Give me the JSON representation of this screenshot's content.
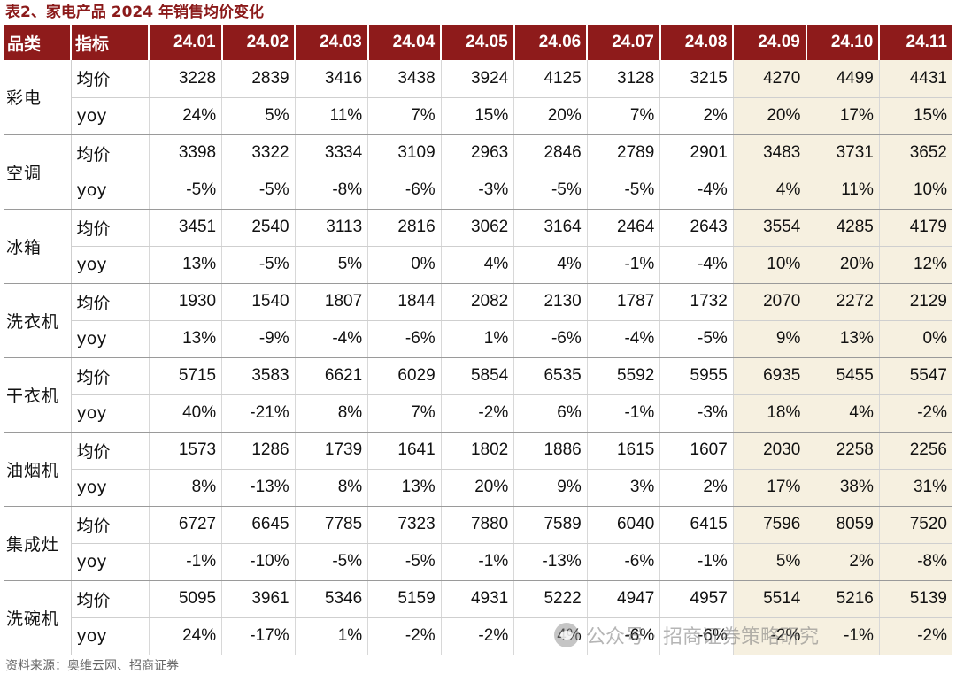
{
  "caption": "表2、家电产品 2024 年销售均价变化",
  "source": "资料来源：奥维云网、招商证券",
  "watermark": "公众号 · 招商证券策略研究",
  "colors": {
    "header_bg": "#8e1b1b",
    "caption": "#8b1a1a",
    "highlight_bg": "#f6f0e0"
  },
  "table": {
    "headers": [
      "品类",
      "指标",
      "24.01",
      "24.02",
      "24.03",
      "24.04",
      "24.05",
      "24.06",
      "24.07",
      "24.08",
      "24.09",
      "24.10",
      "24.11"
    ],
    "highlight_months": [
      "24.09",
      "24.10",
      "24.11"
    ],
    "groups": [
      {
        "category": "彩电",
        "rows": [
          {
            "metric": "均价",
            "values": [
              "3228",
              "2839",
              "3416",
              "3438",
              "3924",
              "4125",
              "3128",
              "3215",
              "4270",
              "4499",
              "4431"
            ]
          },
          {
            "metric": "yoy",
            "values": [
              "24%",
              "5%",
              "11%",
              "7%",
              "15%",
              "20%",
              "7%",
              "2%",
              "20%",
              "17%",
              "15%"
            ]
          }
        ]
      },
      {
        "category": "空调",
        "rows": [
          {
            "metric": "均价",
            "values": [
              "3398",
              "3322",
              "3334",
              "3109",
              "2963",
              "2846",
              "2789",
              "2901",
              "3483",
              "3731",
              "3652"
            ]
          },
          {
            "metric": "yoy",
            "values": [
              "-5%",
              "-5%",
              "-8%",
              "-6%",
              "-3%",
              "-5%",
              "-5%",
              "-4%",
              "4%",
              "11%",
              "10%"
            ]
          }
        ]
      },
      {
        "category": "冰箱",
        "rows": [
          {
            "metric": "均价",
            "values": [
              "3451",
              "2540",
              "3113",
              "2816",
              "3062",
              "3164",
              "2464",
              "2643",
              "3554",
              "4285",
              "4179"
            ]
          },
          {
            "metric": "yoy",
            "values": [
              "13%",
              "-5%",
              "5%",
              "0%",
              "4%",
              "4%",
              "-1%",
              "-4%",
              "10%",
              "20%",
              "12%"
            ]
          }
        ]
      },
      {
        "category": "洗衣机",
        "rows": [
          {
            "metric": "均价",
            "values": [
              "1930",
              "1540",
              "1807",
              "1844",
              "2082",
              "2130",
              "1787",
              "1732",
              "2070",
              "2272",
              "2129"
            ]
          },
          {
            "metric": "yoy",
            "values": [
              "13%",
              "-9%",
              "-4%",
              "-6%",
              "1%",
              "-6%",
              "-4%",
              "-5%",
              "9%",
              "13%",
              "0%"
            ]
          }
        ]
      },
      {
        "category": "干衣机",
        "rows": [
          {
            "metric": "均价",
            "values": [
              "5715",
              "3583",
              "6621",
              "6029",
              "5854",
              "6535",
              "5592",
              "5955",
              "6935",
              "5455",
              "5547"
            ]
          },
          {
            "metric": "yoy",
            "values": [
              "40%",
              "-21%",
              "8%",
              "7%",
              "-2%",
              "6%",
              "-1%",
              "-3%",
              "18%",
              "4%",
              "-2%"
            ]
          }
        ]
      },
      {
        "category": "油烟机",
        "rows": [
          {
            "metric": "均价",
            "values": [
              "1573",
              "1286",
              "1739",
              "1641",
              "1802",
              "1886",
              "1615",
              "1607",
              "2030",
              "2258",
              "2256"
            ]
          },
          {
            "metric": "yoy",
            "values": [
              "8%",
              "-13%",
              "8%",
              "13%",
              "20%",
              "9%",
              "3%",
              "2%",
              "17%",
              "38%",
              "31%"
            ]
          }
        ]
      },
      {
        "category": "集成灶",
        "rows": [
          {
            "metric": "均价",
            "values": [
              "6727",
              "6645",
              "7785",
              "7323",
              "7880",
              "7589",
              "6040",
              "6415",
              "7596",
              "8059",
              "7520"
            ]
          },
          {
            "metric": "yoy",
            "values": [
              "-1%",
              "-10%",
              "-5%",
              "-5%",
              "-1%",
              "-13%",
              "-6%",
              "-1%",
              "5%",
              "2%",
              "-8%"
            ]
          }
        ]
      },
      {
        "category": "洗碗机",
        "rows": [
          {
            "metric": "均价",
            "values": [
              "5095",
              "3961",
              "5346",
              "5159",
              "4931",
              "5222",
              "4947",
              "4957",
              "5514",
              "5216",
              "5139"
            ]
          },
          {
            "metric": "yoy",
            "values": [
              "24%",
              "-17%",
              "1%",
              "-2%",
              "-2%",
              "4%",
              "-6%",
              "-6%",
              "-2%",
              "-1%",
              "-2%"
            ]
          }
        ]
      }
    ]
  }
}
